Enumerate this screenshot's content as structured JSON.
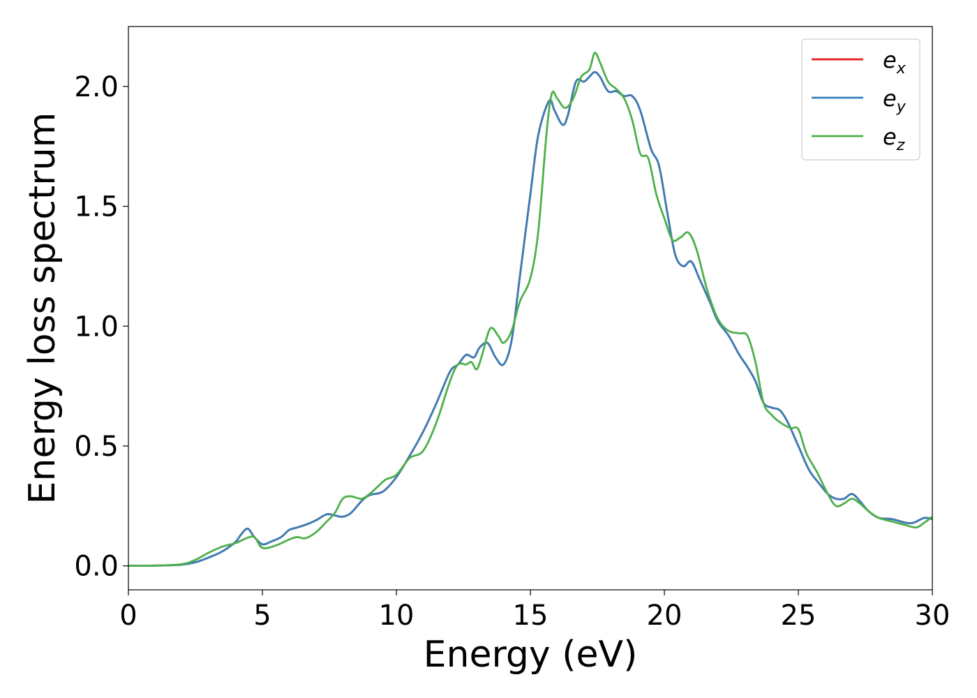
{
  "chart_data": {
    "type": "line",
    "title": "",
    "xlabel": "Energy (eV)",
    "ylabel": "Energy loss spectrum",
    "xlim": [
      0,
      30
    ],
    "ylim": [
      -0.1,
      2.25
    ],
    "xticks": [
      0,
      5,
      10,
      15,
      20,
      25,
      30
    ],
    "xtick_labels": [
      "0",
      "5",
      "10",
      "15",
      "20",
      "25",
      "30"
    ],
    "yticks": [
      0.0,
      0.5,
      1.0,
      1.5,
      2.0
    ],
    "ytick_labels": [
      "0.0",
      "0.5",
      "1.0",
      "1.5",
      "2.0"
    ],
    "grid": false,
    "legend_position": "top-right",
    "series": [
      {
        "name": "e_x",
        "legend_base": "e",
        "legend_sub": "x",
        "color": "#e41a1c",
        "x": [
          0,
          1,
          2,
          2.5,
          3,
          3.5,
          4,
          4.2,
          4.45,
          4.7,
          5,
          5.3,
          5.7,
          6,
          6.3,
          6.7,
          7,
          7.4,
          7.7,
          8,
          8.3,
          8.7,
          9,
          9.5,
          10,
          10.5,
          11,
          11.5,
          12,
          12.3,
          12.6,
          12.9,
          13.1,
          13.4,
          13.7,
          14,
          14.3,
          14.6,
          15,
          15.3,
          15.7,
          15.9,
          16.2,
          16.4,
          16.7,
          17,
          17.2,
          17.4,
          17.6,
          17.9,
          18.2,
          18.5,
          18.8,
          19.1,
          19.5,
          19.8,
          20.1,
          20.4,
          20.7,
          21,
          21.3,
          21.7,
          22,
          22.4,
          22.8,
          23.1,
          23.4,
          23.7,
          24,
          24.3,
          24.6,
          25,
          25.4,
          25.8,
          26.1,
          26.4,
          26.7,
          27,
          27.3,
          27.6,
          28,
          28.5,
          29,
          29.3,
          29.7,
          30
        ],
        "y": [
          0,
          0.001,
          0.005,
          0.015,
          0.035,
          0.06,
          0.1,
          0.13,
          0.155,
          0.12,
          0.09,
          0.1,
          0.12,
          0.15,
          0.16,
          0.175,
          0.19,
          0.215,
          0.21,
          0.205,
          0.22,
          0.27,
          0.295,
          0.31,
          0.37,
          0.46,
          0.56,
          0.68,
          0.81,
          0.84,
          0.88,
          0.87,
          0.91,
          0.93,
          0.87,
          0.84,
          0.94,
          1.2,
          1.55,
          1.8,
          1.94,
          1.9,
          1.84,
          1.88,
          2.02,
          2.02,
          2.04,
          2.06,
          2.04,
          1.98,
          1.98,
          1.96,
          1.96,
          1.9,
          1.74,
          1.67,
          1.48,
          1.3,
          1.25,
          1.27,
          1.2,
          1.1,
          1.02,
          0.96,
          0.88,
          0.83,
          0.77,
          0.68,
          0.66,
          0.65,
          0.6,
          0.5,
          0.4,
          0.34,
          0.3,
          0.28,
          0.28,
          0.3,
          0.27,
          0.23,
          0.2,
          0.195,
          0.18,
          0.18,
          0.2,
          0.195
        ]
      },
      {
        "name": "e_y",
        "legend_base": "e",
        "legend_sub": "y",
        "color": "#377eb8",
        "x": [
          0,
          1,
          2,
          2.5,
          3,
          3.5,
          4,
          4.2,
          4.45,
          4.7,
          5,
          5.3,
          5.7,
          6,
          6.3,
          6.7,
          7,
          7.4,
          7.7,
          8,
          8.3,
          8.7,
          9,
          9.5,
          10,
          10.5,
          11,
          11.5,
          12,
          12.3,
          12.6,
          12.9,
          13.1,
          13.4,
          13.7,
          14,
          14.3,
          14.6,
          15,
          15.3,
          15.7,
          15.9,
          16.2,
          16.4,
          16.7,
          17,
          17.2,
          17.4,
          17.6,
          17.9,
          18.2,
          18.5,
          18.8,
          19.1,
          19.5,
          19.8,
          20.1,
          20.4,
          20.7,
          21,
          21.3,
          21.7,
          22,
          22.4,
          22.8,
          23.1,
          23.4,
          23.7,
          24,
          24.3,
          24.6,
          25,
          25.4,
          25.8,
          26.1,
          26.4,
          26.7,
          27,
          27.3,
          27.6,
          28,
          28.5,
          29,
          29.3,
          29.7,
          30
        ],
        "y": [
          0,
          0.001,
          0.005,
          0.015,
          0.035,
          0.06,
          0.1,
          0.13,
          0.155,
          0.12,
          0.09,
          0.1,
          0.12,
          0.15,
          0.16,
          0.175,
          0.19,
          0.215,
          0.21,
          0.205,
          0.22,
          0.27,
          0.295,
          0.31,
          0.37,
          0.46,
          0.56,
          0.68,
          0.81,
          0.84,
          0.88,
          0.87,
          0.91,
          0.93,
          0.87,
          0.84,
          0.94,
          1.2,
          1.55,
          1.8,
          1.94,
          1.9,
          1.84,
          1.88,
          2.02,
          2.02,
          2.04,
          2.06,
          2.04,
          1.98,
          1.98,
          1.96,
          1.96,
          1.9,
          1.74,
          1.67,
          1.48,
          1.3,
          1.25,
          1.27,
          1.2,
          1.1,
          1.02,
          0.96,
          0.88,
          0.83,
          0.77,
          0.68,
          0.66,
          0.65,
          0.6,
          0.5,
          0.4,
          0.34,
          0.3,
          0.28,
          0.28,
          0.3,
          0.27,
          0.23,
          0.2,
          0.195,
          0.18,
          0.18,
          0.2,
          0.195
        ]
      },
      {
        "name": "e_z",
        "legend_base": "e",
        "legend_sub": "z",
        "color": "#4daf4a",
        "x": [
          0,
          1,
          2,
          2.5,
          3,
          3.5,
          4,
          4.4,
          4.7,
          5,
          5.5,
          6,
          6.3,
          6.6,
          7,
          7.4,
          7.7,
          8,
          8.3,
          8.7,
          9,
          9.3,
          9.6,
          10,
          10.5,
          11,
          11.5,
          12,
          12.3,
          12.6,
          12.8,
          13,
          13.2,
          13.5,
          13.8,
          14,
          14.3,
          14.6,
          15,
          15.3,
          15.6,
          15.8,
          16,
          16.3,
          16.6,
          16.9,
          17.2,
          17.4,
          17.6,
          17.9,
          18.2,
          18.5,
          18.8,
          19.1,
          19.4,
          19.7,
          20,
          20.3,
          20.6,
          20.9,
          21.2,
          21.6,
          22,
          22.4,
          22.8,
          23.1,
          23.4,
          23.7,
          24,
          24.3,
          24.7,
          25,
          25.3,
          25.7,
          26.1,
          26.4,
          26.7,
          27,
          27.3,
          27.6,
          28,
          28.5,
          29,
          29.4,
          29.7,
          30
        ],
        "y": [
          0,
          0.001,
          0.007,
          0.025,
          0.055,
          0.08,
          0.095,
          0.115,
          0.12,
          0.075,
          0.085,
          0.11,
          0.12,
          0.115,
          0.14,
          0.185,
          0.22,
          0.28,
          0.29,
          0.28,
          0.3,
          0.33,
          0.36,
          0.38,
          0.45,
          0.48,
          0.6,
          0.77,
          0.84,
          0.84,
          0.85,
          0.82,
          0.88,
          0.99,
          0.96,
          0.93,
          0.98,
          1.1,
          1.2,
          1.4,
          1.8,
          1.97,
          1.95,
          1.91,
          1.95,
          2.04,
          2.07,
          2.14,
          2.1,
          2.02,
          1.99,
          1.95,
          1.86,
          1.72,
          1.7,
          1.55,
          1.45,
          1.36,
          1.37,
          1.39,
          1.32,
          1.15,
          1.03,
          0.98,
          0.97,
          0.96,
          0.85,
          0.68,
          0.63,
          0.6,
          0.575,
          0.57,
          0.47,
          0.39,
          0.3,
          0.25,
          0.26,
          0.28,
          0.26,
          0.23,
          0.2,
          0.185,
          0.17,
          0.16,
          0.18,
          0.205
        ]
      }
    ]
  }
}
